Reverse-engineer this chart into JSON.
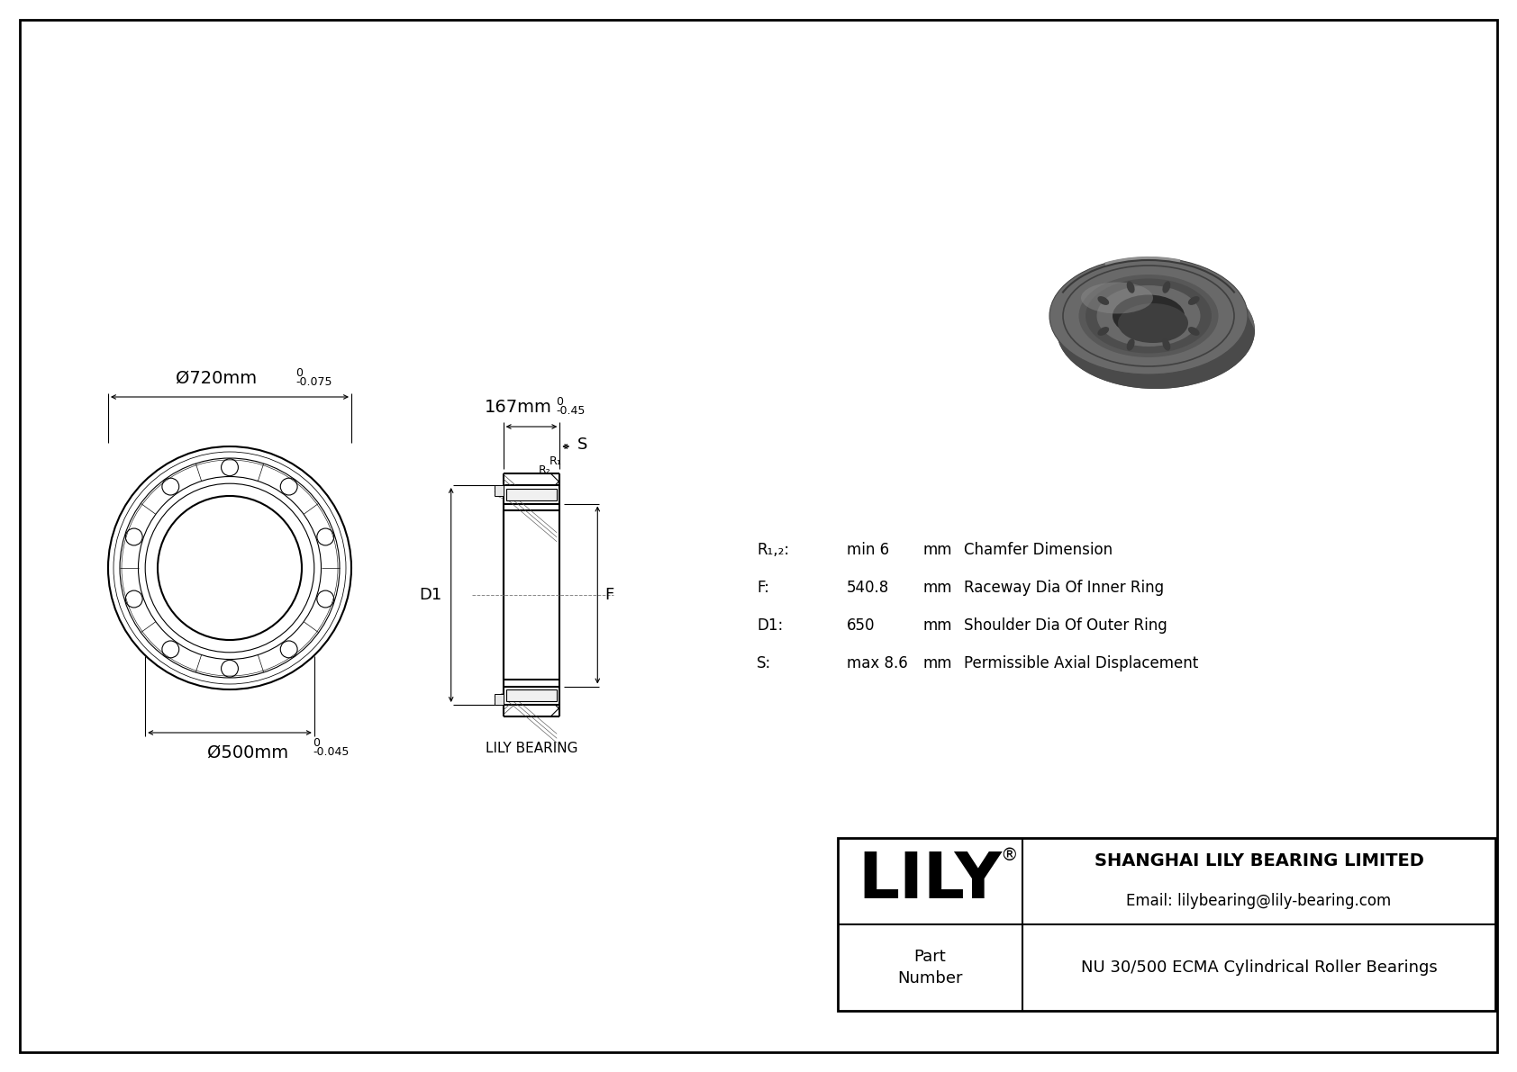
{
  "bg_color": "#ffffff",
  "line_color": "#000000",
  "outer_dia_label": "Ø720mm",
  "outer_dia_tol_upper": "0",
  "outer_dia_tol_lower": "-0.075",
  "inner_dia_label": "Ø500mm",
  "inner_dia_tol_upper": "0",
  "inner_dia_tol_lower": "-0.045",
  "width_label": "167mm",
  "width_tol_upper": "0",
  "width_tol_lower": "-0.45",
  "params": [
    {
      "symbol": "R₁,₂:",
      "value": "min 6",
      "unit": "mm",
      "description": "Chamfer Dimension"
    },
    {
      "symbol": "F:",
      "value": "540.8",
      "unit": "mm",
      "description": "Raceway Dia Of Inner Ring"
    },
    {
      "symbol": "D1:",
      "value": "650",
      "unit": "mm",
      "description": "Shoulder Dia Of Outer Ring"
    },
    {
      "symbol": "S:",
      "value": "max 8.6",
      "unit": "mm",
      "description": "Permissible Axial Displacement"
    }
  ],
  "company_name": "SHANGHAI LILY BEARING LIMITED",
  "email": "Email: lilybearing@lily-bearing.com",
  "part_number": "NU 30/500 ECMA Cylindrical Roller Bearings",
  "lily_logo": "LILY",
  "label_D1": "D1",
  "label_F": "F",
  "label_S": "S",
  "label_R1": "R₁",
  "label_R2": "R₂",
  "lily_bearing_label": "LILY BEARING"
}
